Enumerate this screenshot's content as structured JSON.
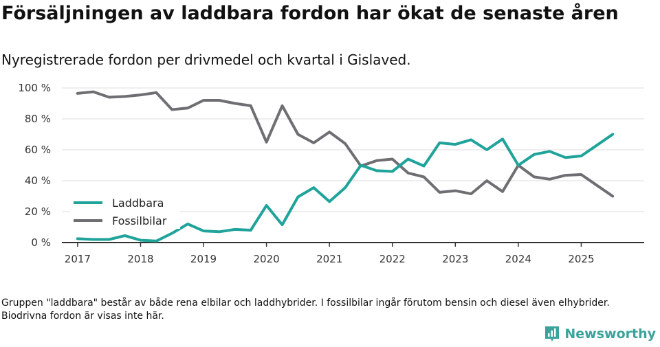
{
  "title": "Försäljningen av laddbara fordon har ökat de senaste åren",
  "subtitle": "Nyregistrerade fordon per drivmedel och kvartal i Gislaved.",
  "footnote": "Gruppen \"laddbara\" består av både rena elbilar och laddhybrider. I fossilbilar ingår förutom bensin och diesel även elhybrider. Biodrivna fordon är visas inte här.",
  "brand": {
    "name": "Newsworthy",
    "icon": "newsworthy-logo-icon"
  },
  "colors": {
    "laddbara": "#1fa39a",
    "fossil": "#6e6e73",
    "grid": "#dddddd",
    "axis": "#333333"
  },
  "chart_data": {
    "type": "line",
    "title": "Försäljningen av laddbara fordon har ökat de senaste åren",
    "xlabel": "",
    "ylabel": "",
    "ylim": [
      0,
      100
    ],
    "xlim": [
      2016.75,
      2026.0
    ],
    "y_ticks": [
      0,
      20,
      40,
      60,
      80,
      100
    ],
    "y_tick_labels": [
      "0 %",
      "20 %",
      "40 %",
      "60 %",
      "80 %",
      "100 %"
    ],
    "x_ticks": [
      2017,
      2018,
      2019,
      2020,
      2021,
      2022,
      2023,
      2024,
      2025
    ],
    "x_tick_labels": [
      "2017",
      "2018",
      "2019",
      "2020",
      "2021",
      "2022",
      "2023",
      "2024",
      "2025"
    ],
    "legend_position": "lower-left",
    "x": [
      2017.0,
      2017.25,
      2017.5,
      2017.75,
      2018.0,
      2018.25,
      2018.5,
      2018.75,
      2019.0,
      2019.25,
      2019.5,
      2019.75,
      2020.0,
      2020.25,
      2020.5,
      2020.75,
      2021.0,
      2021.25,
      2021.5,
      2021.75,
      2022.0,
      2022.25,
      2022.5,
      2022.75,
      2023.0,
      2023.25,
      2023.5,
      2023.75,
      2024.0,
      2024.25,
      2024.5,
      2024.75,
      2025.0,
      2025.25,
      2025.5
    ],
    "series": [
      {
        "name": "Laddbara",
        "color": "#1fa39a",
        "values": [
          2.5,
          2,
          2,
          4.5,
          1.5,
          1,
          6,
          12,
          7.5,
          7,
          8.5,
          8,
          24,
          11.5,
          29.5,
          35.5,
          26.5,
          35.5,
          50,
          46.5,
          46,
          54,
          49.5,
          64.5,
          63.5,
          66.5,
          60,
          67,
          50,
          57,
          59,
          55,
          56,
          63,
          70
        ]
      },
      {
        "name": "Fossilbilar",
        "color": "#6e6e73",
        "values": [
          96.5,
          97.5,
          94,
          94.5,
          95.5,
          97,
          86,
          87,
          92,
          92,
          90,
          88.5,
          65,
          88.5,
          70,
          64.5,
          71.5,
          64,
          49.5,
          53,
          54,
          45,
          42.5,
          32.5,
          33.5,
          31.5,
          40,
          33,
          50,
          42.5,
          41,
          43.5,
          44,
          37,
          30
        ]
      }
    ]
  }
}
